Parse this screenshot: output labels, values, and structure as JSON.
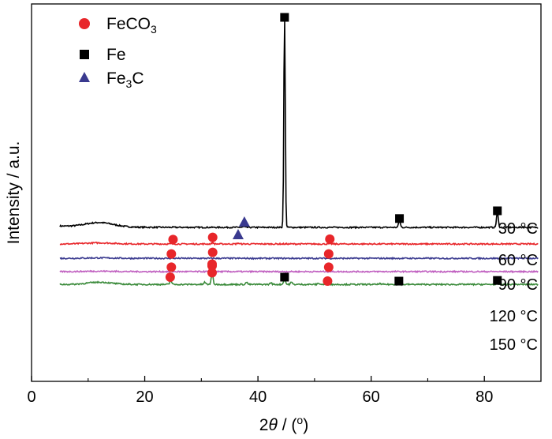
{
  "chart_data": {
    "type": "line",
    "title": "",
    "xlabel": "2θ / (°)",
    "ylabel": "Intensity / a.u.",
    "xlim": [
      0,
      90
    ],
    "xticks": [
      0,
      20,
      40,
      60,
      80
    ],
    "y_ticks_labeled": false,
    "legend": {
      "position": "top-left",
      "entries": [
        {
          "name": "FeCO3",
          "marker": "circle",
          "color": "#e8262a"
        },
        {
          "name": "Fe",
          "marker": "square",
          "color": "#000000"
        },
        {
          "name": "Fe3C",
          "marker": "triangle",
          "color": "#3a3a8f"
        }
      ]
    },
    "series": [
      {
        "name": "30 °C",
        "color": "#000000",
        "baseline": 0.05,
        "hump": {
          "center": 12,
          "width": 3.5,
          "height": 0.02
        },
        "peaks": [
          {
            "pos": 37.5,
            "height": 0.003
          },
          {
            "pos": 44.7,
            "height": 0.95
          },
          {
            "pos": 65.0,
            "height": 0.03
          },
          {
            "pos": 82.3,
            "height": 0.07
          }
        ],
        "markers": [
          {
            "x": 37.6,
            "y": 0.075,
            "type": "triangle"
          },
          {
            "x": 44.7,
            "y": 1.0,
            "type": "square"
          },
          {
            "x": 65.0,
            "y": 0.09,
            "type": "square"
          },
          {
            "x": 82.3,
            "y": 0.125,
            "type": "square"
          }
        ]
      },
      {
        "name": "60 °C",
        "color": "#e8262a",
        "baseline": -0.025,
        "hump": {
          "center": 12,
          "width": 3.5,
          "height": 0.005
        },
        "peaks": [
          {
            "pos": 32.0,
            "height": 0.006
          },
          {
            "pos": 36.5,
            "height": 0.004
          }
        ],
        "markers": [
          {
            "x": 25.0,
            "y": -0.005,
            "type": "circle"
          },
          {
            "x": 32.0,
            "y": 0.005,
            "type": "circle"
          },
          {
            "x": 36.5,
            "y": 0.018,
            "type": "triangle"
          },
          {
            "x": 52.7,
            "y": -0.003,
            "type": "circle"
          }
        ]
      },
      {
        "name": "90 °C",
        "color": "#3a3a8f",
        "baseline": -0.09,
        "hump": {
          "center": 12,
          "width": 3.5,
          "height": 0.002
        },
        "peaks": [],
        "markers": [
          {
            "x": 24.7,
            "y": -0.07,
            "type": "circle"
          },
          {
            "x": 32.0,
            "y": -0.063,
            "type": "circle"
          },
          {
            "x": 52.5,
            "y": -0.07,
            "type": "circle"
          }
        ]
      },
      {
        "name": "120 °C",
        "color": "#c060c0",
        "baseline": -0.15,
        "hump": {
          "center": 12,
          "width": 3.5,
          "height": 0.002
        },
        "peaks": [
          {
            "pos": 32.0,
            "height": 0.006
          }
        ],
        "markers": [
          {
            "x": 24.7,
            "y": -0.13,
            "type": "circle"
          },
          {
            "x": 31.9,
            "y": -0.116,
            "type": "circle"
          },
          {
            "x": 31.9,
            "y": -0.124,
            "type": "circle"
          },
          {
            "x": 52.5,
            "y": -0.13,
            "type": "circle"
          }
        ]
      },
      {
        "name": "150 °C",
        "color": "#3a8a3a",
        "baseline": -0.208,
        "hump": {
          "center": 12,
          "width": 3.0,
          "height": 0.01
        },
        "peaks": [
          {
            "pos": 24.6,
            "height": 0.018
          },
          {
            "pos": 30.6,
            "height": 0.01
          },
          {
            "pos": 31.9,
            "height": 0.055
          },
          {
            "pos": 38.0,
            "height": 0.01
          },
          {
            "pos": 42.3,
            "height": 0.008
          },
          {
            "pos": 44.7,
            "height": 0.028
          },
          {
            "pos": 45.9,
            "height": 0.01
          },
          {
            "pos": 50.7,
            "height": 0.006
          },
          {
            "pos": 52.5,
            "height": 0.008
          },
          {
            "pos": 61.5,
            "height": 0.004
          },
          {
            "pos": 65.0,
            "height": 0.004
          },
          {
            "pos": 82.3,
            "height": 0.003
          }
        ],
        "markers": [
          {
            "x": 24.5,
            "y": -0.175,
            "type": "circle"
          },
          {
            "x": 31.9,
            "y": -0.155,
            "type": "circle"
          },
          {
            "x": 44.7,
            "y": -0.175,
            "type": "square"
          },
          {
            "x": 52.3,
            "y": -0.193,
            "type": "circle"
          },
          {
            "x": 64.9,
            "y": -0.193,
            "type": "square"
          },
          {
            "x": 82.3,
            "y": -0.19,
            "type": "square"
          }
        ]
      }
    ]
  }
}
